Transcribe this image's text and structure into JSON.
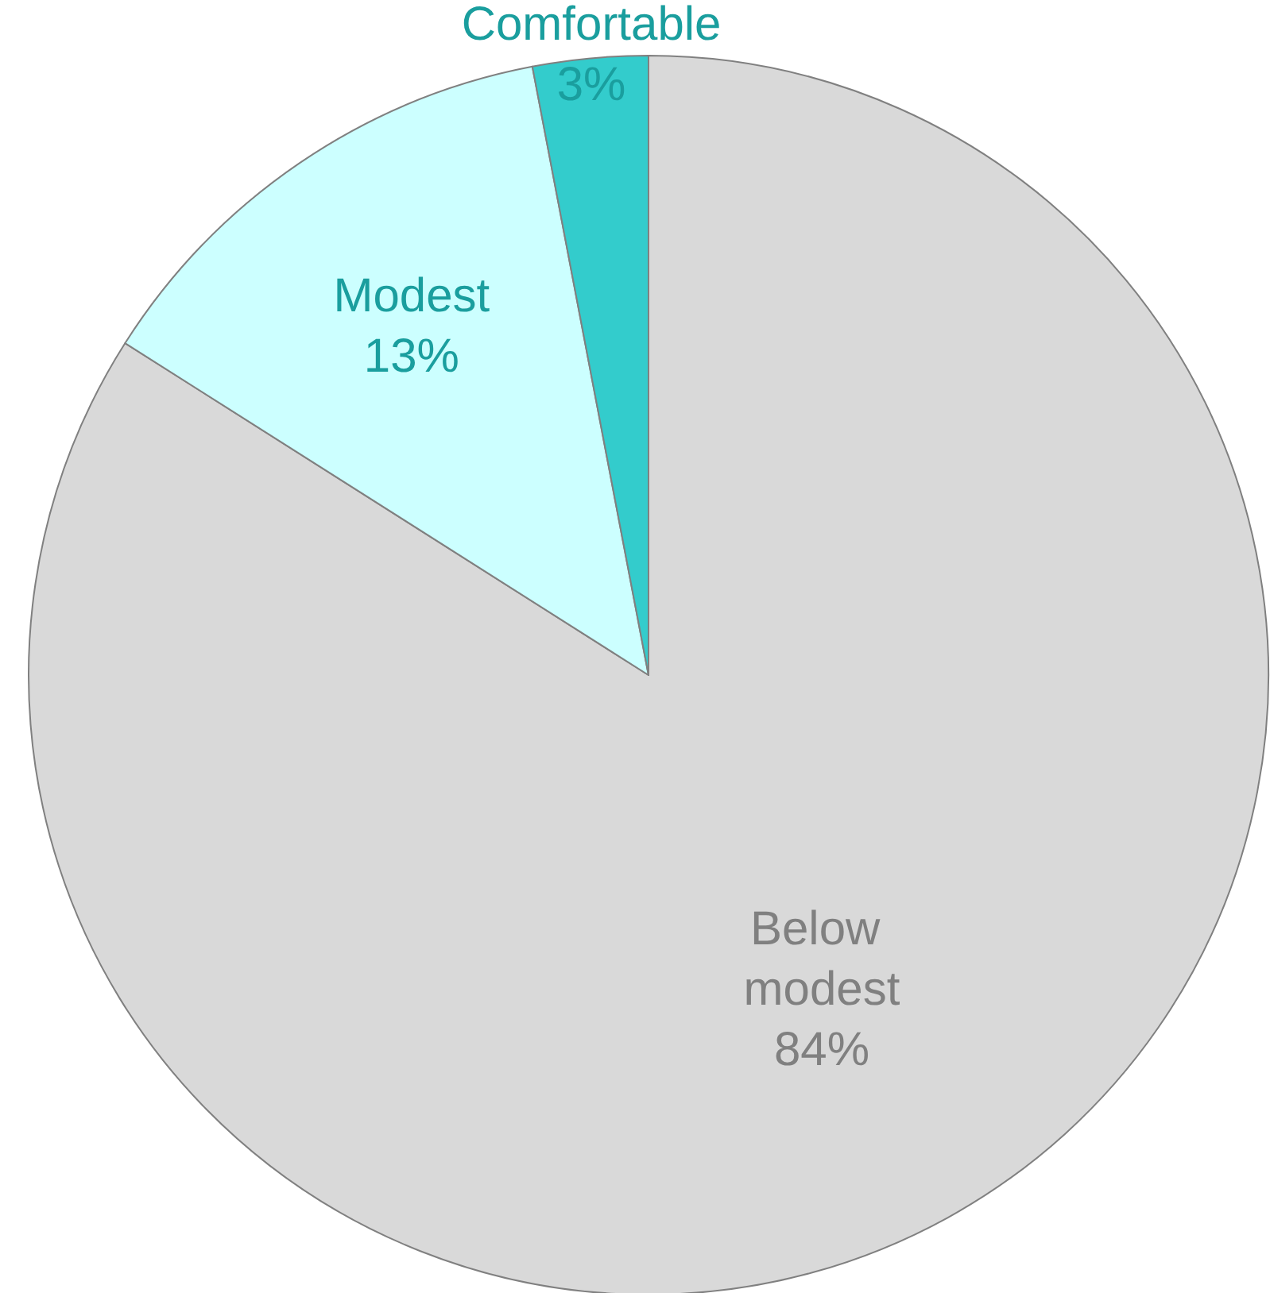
{
  "chart_data": {
    "type": "pie",
    "categories": [
      "Below modest",
      "Modest",
      "Comfortable"
    ],
    "values": [
      84,
      13,
      3
    ],
    "colors": [
      "#d9d9d9",
      "#ccffff",
      "#33cccc"
    ],
    "value_labels": [
      "84%",
      "13%",
      "3%"
    ],
    "legend": false
  }
}
